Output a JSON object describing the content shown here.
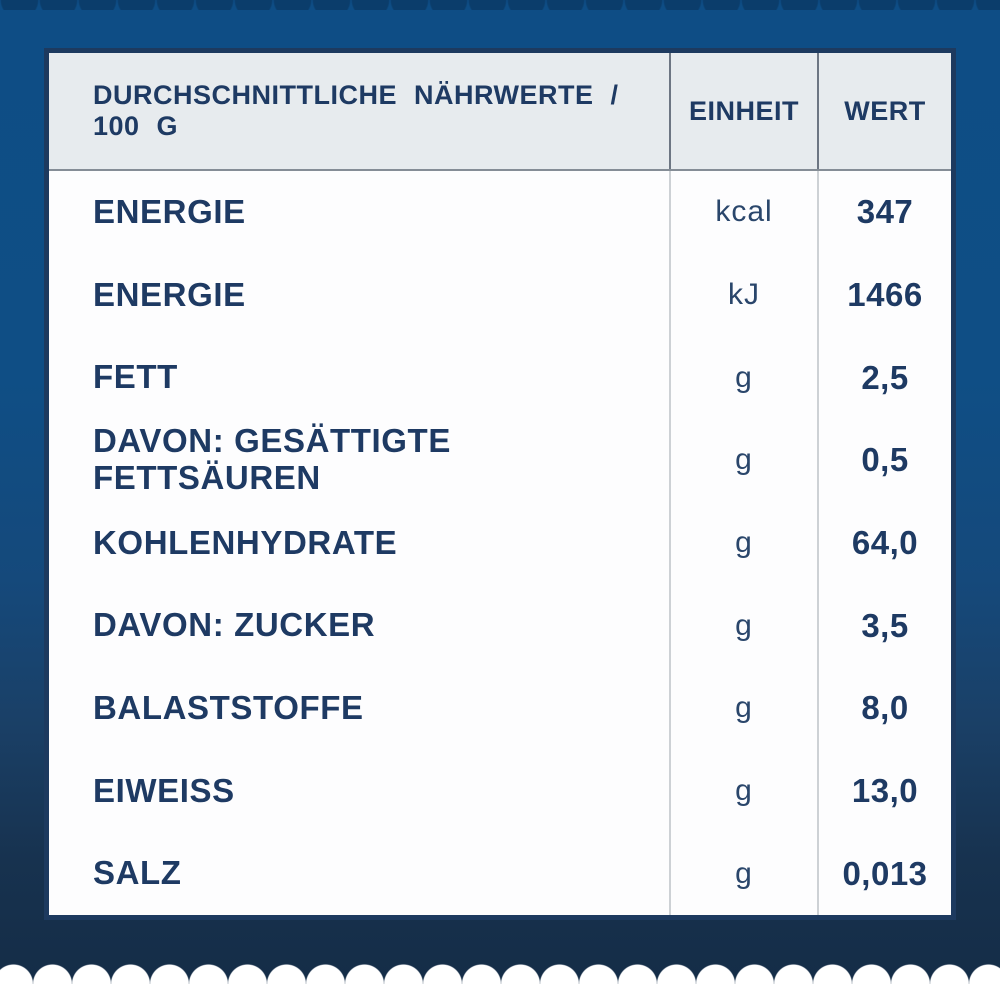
{
  "table": {
    "header": {
      "nutrient_col": "DURCHSCHNITTLICHE NÄHRWERTE / 100 G",
      "unit_col": "EINHEIT",
      "value_col": "WERT"
    },
    "rows": [
      {
        "label": "ENERGIE",
        "unit": "kcal",
        "value": "347"
      },
      {
        "label": "ENERGIE",
        "unit": "kJ",
        "value": "1466"
      },
      {
        "label": "FETT",
        "unit": "g",
        "value": "2,5"
      },
      {
        "label": "DAVON: GESÄTTIGTE\nFETTSÄUREN",
        "unit": "g",
        "value": "0,5"
      },
      {
        "label": "KOHLENHYDRATE",
        "unit": "g",
        "value": "64,0"
      },
      {
        "label": "DAVON: ZUCKER",
        "unit": "g",
        "value": "3,5"
      },
      {
        "label": "BALASTSTOFFE",
        "unit": "g",
        "value": "8,0"
      },
      {
        "label": "EIWEISS",
        "unit": "g",
        "value": "13,0"
      },
      {
        "label": "SALZ",
        "unit": "g",
        "value": "0,013"
      }
    ]
  },
  "colors": {
    "background_blue_top": "#0e4d85",
    "background_navy_bottom": "#142c46",
    "card_border_navy": "#1d3a5f",
    "card_white": "#fdfdfe",
    "header_bg": "#e7ebee",
    "text_navy": "#1e3a63",
    "scallop_white": "#ffffff"
  }
}
